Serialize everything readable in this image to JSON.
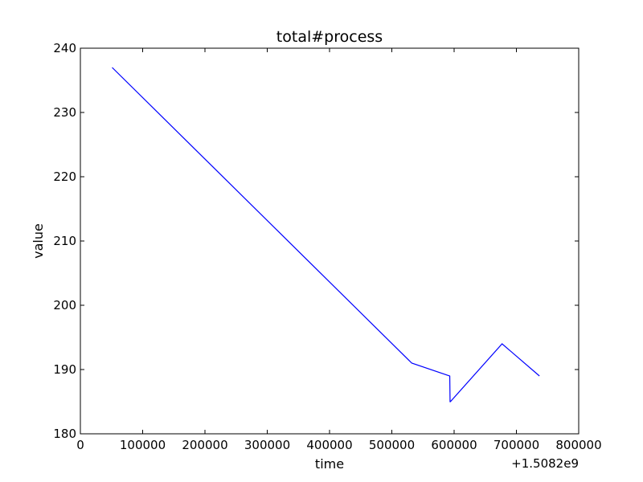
{
  "chart_data": {
    "type": "line",
    "title": "total#process",
    "xlabel": "time",
    "ylabel": "value",
    "x_offset_label": "+1.5082e9",
    "xlim": [
      0,
      800000
    ],
    "ylim": [
      180,
      240
    ],
    "xticks": [
      0,
      100000,
      200000,
      300000,
      400000,
      500000,
      600000,
      700000,
      800000
    ],
    "yticks": [
      180,
      190,
      200,
      210,
      220,
      230,
      240
    ],
    "xtick_labels": [
      "0",
      "100000",
      "200000",
      "300000",
      "400000",
      "500000",
      "600000",
      "700000",
      "800000"
    ],
    "ytick_labels": [
      "180",
      "190",
      "200",
      "210",
      "220",
      "230",
      "240"
    ],
    "grid": false,
    "series": [
      {
        "color": "#0000ff",
        "x": [
          51000,
          532000,
          593000,
          593500,
          594000,
          677000,
          737000
        ],
        "y": [
          237,
          191,
          189,
          185,
          185,
          194,
          189
        ]
      }
    ]
  }
}
